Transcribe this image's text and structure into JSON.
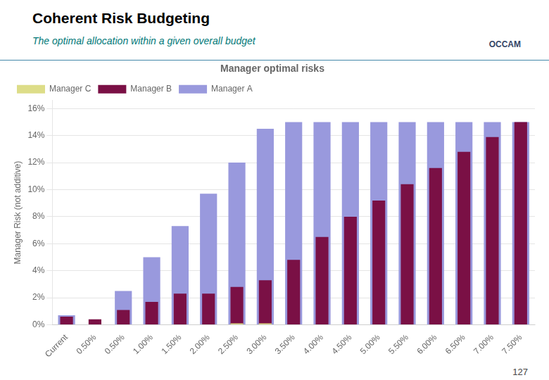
{
  "chart_data": {
    "type": "bar",
    "title": "Coherent Risk Budgeting",
    "subtitle": "The optimal allocation within a given overall budget",
    "annotations": [
      "Manager optimal risks",
      "OCCAM",
      "127"
    ],
    "ylabel": "Manager Risk (not additive)",
    "categories": [
      "Current",
      "0.50%",
      "0.50%",
      "1.00%",
      "1.50%",
      "2.00%",
      "2.50%",
      "3.00%",
      "3.50%",
      "4.00%",
      "4.50%",
      "5.00%",
      "5.50%",
      "6.00%",
      "6.50%",
      "7.00%",
      "7.50%"
    ],
    "series": [
      {
        "name": "Manager A",
        "color": "#9999dd",
        "values": [
          0.007,
          0.0,
          0.025,
          0.05,
          0.073,
          0.097,
          0.12,
          0.145,
          0.15,
          0.15,
          0.15,
          0.15,
          0.15,
          0.15,
          0.15,
          0.15,
          0.15
        ]
      },
      {
        "name": "Manager B",
        "color": "#7a1045",
        "values": [
          0.006,
          0.004,
          0.011,
          0.017,
          0.023,
          0.023,
          0.028,
          0.033,
          0.048,
          0.065,
          0.08,
          0.092,
          0.104,
          0.116,
          0.128,
          0.139,
          0.15
        ]
      },
      {
        "name": "Manager C",
        "color": "#dddd88",
        "values": [
          0.0,
          0.0,
          0.0,
          0.0,
          0.0,
          0.0,
          0.001,
          0.001,
          0.0,
          0.0,
          0.0,
          0.0,
          0.0,
          0.0,
          0.0,
          0.0,
          0.0
        ]
      }
    ],
    "ylim": [
      0,
      0.166
    ],
    "yticks": [
      {
        "value": 0.0,
        "label": "0%"
      },
      {
        "value": 0.02,
        "label": "2%"
      },
      {
        "value": 0.04,
        "label": "4%"
      },
      {
        "value": 0.06,
        "label": "6%"
      },
      {
        "value": 0.08,
        "label": "8%"
      },
      {
        "value": 0.1,
        "label": "10%"
      },
      {
        "value": 0.12,
        "label": "12%"
      },
      {
        "value": 0.14,
        "label": "14%"
      },
      {
        "value": 0.16,
        "label": "16%"
      }
    ],
    "grid": true,
    "legend": "upper left"
  }
}
